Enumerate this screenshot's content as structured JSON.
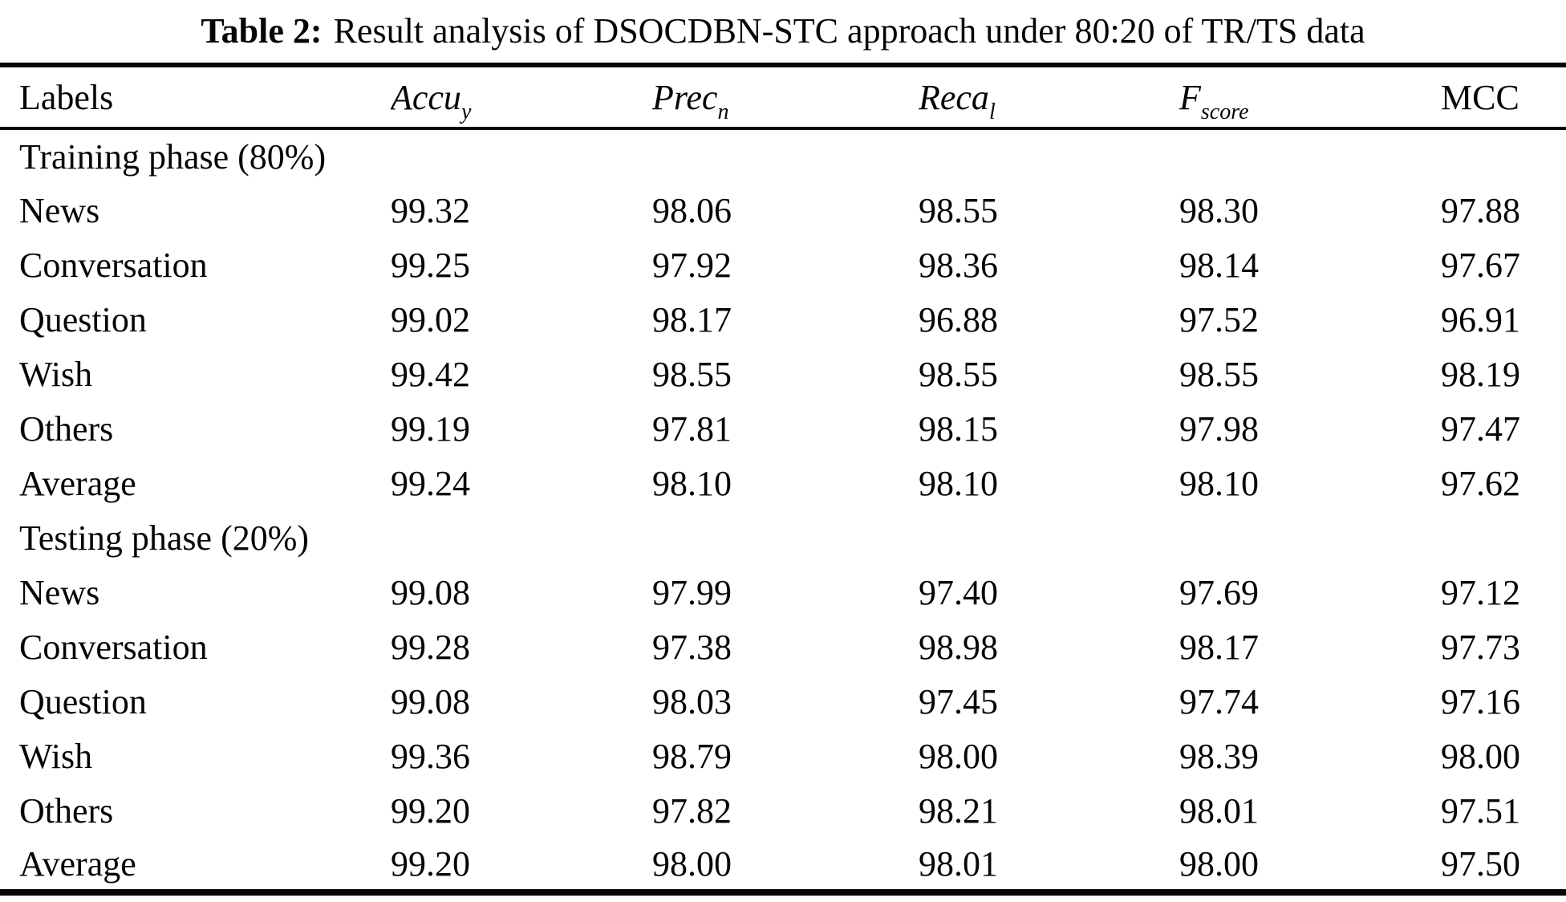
{
  "page": {
    "background_color": "#ffffff",
    "text_color": "#060606"
  },
  "title": {
    "label": "Table 2:",
    "text": "Result analysis of DSOCDBN-STC approach under 80:20 of TR/TS data"
  },
  "table": {
    "columns": [
      {
        "main": "Labels",
        "sub": ""
      },
      {
        "main": "Accu",
        "sub": "y"
      },
      {
        "main": "Prec",
        "sub": "n"
      },
      {
        "main": "Reca",
        "sub": "l"
      },
      {
        "main": "F",
        "sub": "score"
      },
      {
        "main": "MCC",
        "sub": ""
      }
    ],
    "sections": [
      {
        "header": "Training phase (80%)",
        "rows": [
          {
            "label": "News",
            "values": [
              "99.32",
              "98.06",
              "98.55",
              "98.30",
              "97.88"
            ]
          },
          {
            "label": "Conversation",
            "values": [
              "99.25",
              "97.92",
              "98.36",
              "98.14",
              "97.67"
            ]
          },
          {
            "label": "Question",
            "values": [
              "99.02",
              "98.17",
              "96.88",
              "97.52",
              "96.91"
            ]
          },
          {
            "label": "Wish",
            "values": [
              "99.42",
              "98.55",
              "98.55",
              "98.55",
              "98.19"
            ]
          },
          {
            "label": "Others",
            "values": [
              "99.19",
              "97.81",
              "98.15",
              "97.98",
              "97.47"
            ]
          },
          {
            "label": "Average",
            "values": [
              "99.24",
              "98.10",
              "98.10",
              "98.10",
              "97.62"
            ]
          }
        ]
      },
      {
        "header": "Testing phase (20%)",
        "rows": [
          {
            "label": "News",
            "values": [
              "99.08",
              "97.99",
              "97.40",
              "97.69",
              "97.12"
            ]
          },
          {
            "label": "Conversation",
            "values": [
              "99.28",
              "97.38",
              "98.98",
              "98.17",
              "97.73"
            ]
          },
          {
            "label": "Question",
            "values": [
              "99.08",
              "98.03",
              "97.45",
              "97.74",
              "97.16"
            ]
          },
          {
            "label": "Wish",
            "values": [
              "99.36",
              "98.79",
              "98.00",
              "98.39",
              "98.00"
            ]
          },
          {
            "label": "Others",
            "values": [
              "99.20",
              "97.82",
              "98.21",
              "98.01",
              "97.51"
            ]
          },
          {
            "label": "Average",
            "values": [
              "99.20",
              "98.00",
              "98.01",
              "98.00",
              "97.50"
            ]
          }
        ]
      }
    ]
  }
}
